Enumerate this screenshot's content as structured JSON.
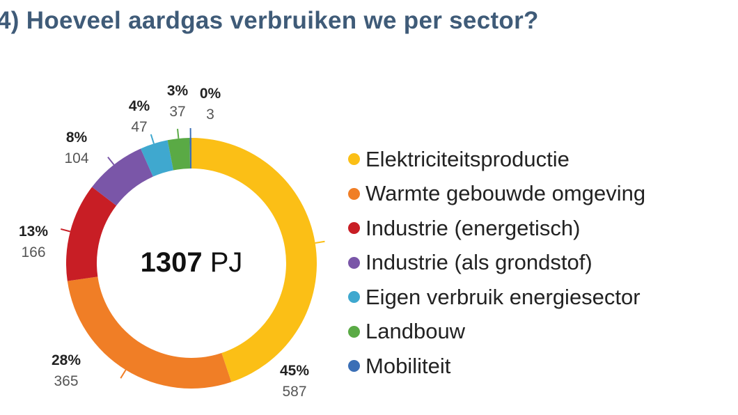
{
  "title": "4) Hoeveel aardgas verbruiken we per sector?",
  "chart_data": {
    "type": "pie",
    "donut": true,
    "center_label": {
      "value": "1307",
      "unit": "PJ"
    },
    "categories": [
      "Elektriciteitsproductie",
      "Warmte gebouwde omgeving",
      "Industrie (energetisch)",
      "Industrie (als grondstof)",
      "Eigen verbruik energiesector",
      "Landbouw",
      "Mobiliteit"
    ],
    "values": [
      587,
      365,
      166,
      104,
      47,
      37,
      3
    ],
    "percent_labels": [
      "45%",
      "28%",
      "13%",
      "8%",
      "4%",
      "3%",
      "0%"
    ],
    "colors": [
      "#fbbf16",
      "#f07e26",
      "#c81e25",
      "#7a56a8",
      "#3fa8cf",
      "#5aaa45",
      "#3b6fb6"
    ],
    "legend_position": "right"
  }
}
